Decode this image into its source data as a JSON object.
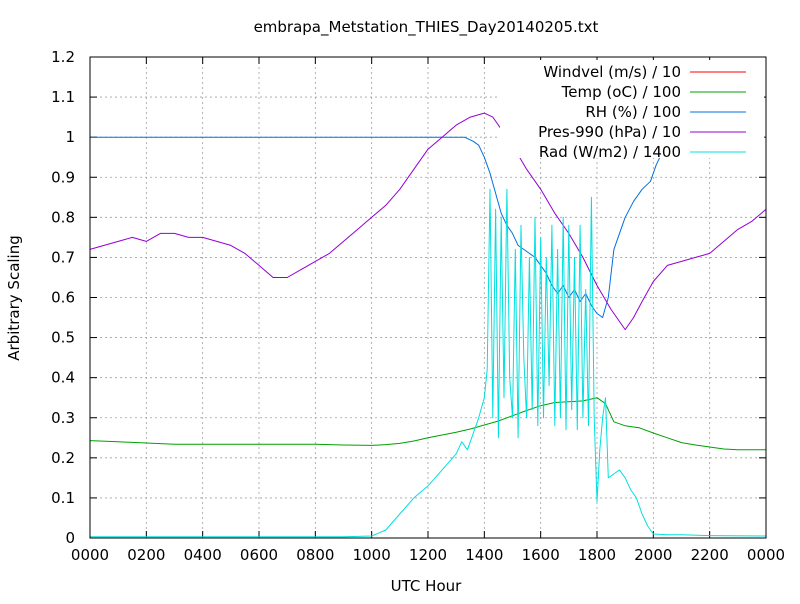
{
  "chart_data": {
    "type": "line",
    "title": "embrapa_Metstation_THIES_Day20140205.txt",
    "xlabel": "UTC Hour",
    "ylabel": "Arbitrary Scaling",
    "xlim": [
      0,
      24
    ],
    "ylim": [
      0,
      1.2
    ],
    "grid": true,
    "legend_position": "top-right",
    "x_ticks": [
      {
        "value": 0,
        "label": "0000"
      },
      {
        "value": 2,
        "label": "0200"
      },
      {
        "value": 4,
        "label": "0400"
      },
      {
        "value": 6,
        "label": "0600"
      },
      {
        "value": 8,
        "label": "0800"
      },
      {
        "value": 10,
        "label": "1000"
      },
      {
        "value": 12,
        "label": "1200"
      },
      {
        "value": 14,
        "label": "1400"
      },
      {
        "value": 16,
        "label": "1600"
      },
      {
        "value": 18,
        "label": "1800"
      },
      {
        "value": 20,
        "label": "2000"
      },
      {
        "value": 22,
        "label": "2200"
      },
      {
        "value": 24,
        "label": "0000"
      }
    ],
    "y_ticks": [
      {
        "value": 0,
        "label": "0"
      },
      {
        "value": 0.1,
        "label": "0.1"
      },
      {
        "value": 0.2,
        "label": "0.2"
      },
      {
        "value": 0.3,
        "label": "0.3"
      },
      {
        "value": 0.4,
        "label": "0.4"
      },
      {
        "value": 0.5,
        "label": "0.5"
      },
      {
        "value": 0.6,
        "label": "0.6"
      },
      {
        "value": 0.7,
        "label": "0.7"
      },
      {
        "value": 0.8,
        "label": "0.8"
      },
      {
        "value": 0.9,
        "label": "0.9"
      },
      {
        "value": 1.0,
        "label": "1"
      },
      {
        "value": 1.1,
        "label": "1.1"
      },
      {
        "value": 1.2,
        "label": "1.2"
      }
    ],
    "series": [
      {
        "name": "Windvel (m/s) / 10",
        "color": "#ff0000",
        "x": [
          0,
          24
        ],
        "y": [
          0,
          0
        ]
      },
      {
        "name": "Temp (oC) / 100",
        "color": "#00a000",
        "x": [
          0,
          1,
          2,
          3,
          4,
          5,
          6,
          7,
          8,
          9,
          10,
          10.5,
          11,
          11.5,
          12,
          12.5,
          13,
          13.5,
          14,
          14.5,
          15,
          15.5,
          16,
          16.5,
          17,
          17.5,
          18,
          18.3,
          18.6,
          19,
          19.5,
          20,
          20.5,
          21,
          21.5,
          22,
          22.5,
          23,
          24
        ],
        "y": [
          0.243,
          0.24,
          0.237,
          0.234,
          0.234,
          0.234,
          0.234,
          0.234,
          0.234,
          0.232,
          0.231,
          0.233,
          0.236,
          0.242,
          0.25,
          0.257,
          0.264,
          0.272,
          0.282,
          0.292,
          0.305,
          0.318,
          0.33,
          0.338,
          0.34,
          0.342,
          0.35,
          0.335,
          0.29,
          0.28,
          0.275,
          0.262,
          0.25,
          0.238,
          0.232,
          0.227,
          0.222,
          0.22,
          0.22
        ]
      },
      {
        "name": "RH (%) / 100",
        "color": "#0070e0",
        "x": [
          0,
          12.5,
          13.0,
          13.3,
          13.6,
          13.8,
          14.0,
          14.2,
          14.4,
          14.6,
          14.8,
          15.0,
          15.2,
          15.4,
          15.6,
          15.8,
          16.0,
          16.2,
          16.4,
          16.6,
          16.8,
          17.0,
          17.2,
          17.4,
          17.6,
          17.8,
          18.0,
          18.2,
          18.4,
          18.6,
          18.8,
          19.0,
          19.3,
          19.6,
          19.9,
          20.1,
          20.3,
          20.6,
          21,
          24
        ],
        "y": [
          1.0,
          1.0,
          1.0,
          1.0,
          0.99,
          0.98,
          0.95,
          0.91,
          0.86,
          0.81,
          0.78,
          0.76,
          0.73,
          0.72,
          0.71,
          0.7,
          0.68,
          0.66,
          0.63,
          0.61,
          0.63,
          0.6,
          0.62,
          0.59,
          0.61,
          0.58,
          0.56,
          0.55,
          0.6,
          0.72,
          0.76,
          0.8,
          0.84,
          0.87,
          0.89,
          0.93,
          0.96,
          0.99,
          1.0,
          1.0
        ]
      },
      {
        "name": "Pres-990 (hPa) / 10",
        "color": "#9400d3",
        "x": [
          0,
          0.5,
          1,
          1.5,
          2,
          2.5,
          3,
          3.5,
          4,
          4.5,
          5,
          5.5,
          6,
          6.5,
          7,
          7.5,
          8,
          8.5,
          9,
          9.5,
          10,
          10.5,
          11,
          11.5,
          12,
          12.5,
          13,
          13.5,
          14,
          14.3,
          14.6,
          15,
          15.5,
          16,
          16.5,
          17,
          17.5,
          18,
          18.5,
          19,
          19.3,
          19.6,
          20,
          20.5,
          21,
          21.5,
          22,
          22.5,
          23,
          23.5,
          24
        ],
        "y": [
          0.72,
          0.73,
          0.74,
          0.75,
          0.74,
          0.76,
          0.76,
          0.75,
          0.75,
          0.74,
          0.73,
          0.71,
          0.68,
          0.65,
          0.65,
          0.67,
          0.69,
          0.71,
          0.74,
          0.77,
          0.8,
          0.83,
          0.87,
          0.92,
          0.97,
          1.0,
          1.03,
          1.05,
          1.06,
          1.05,
          1.02,
          0.98,
          0.92,
          0.87,
          0.81,
          0.76,
          0.7,
          0.63,
          0.57,
          0.52,
          0.55,
          0.59,
          0.64,
          0.68,
          0.69,
          0.7,
          0.71,
          0.74,
          0.77,
          0.79,
          0.82
        ]
      },
      {
        "name": "Rad (W/m2) / 1400",
        "color": "#00e0e0",
        "x": [
          0,
          9,
          10,
          10.5,
          11,
          11.5,
          12,
          12.5,
          13,
          13.2,
          13.4,
          13.6,
          13.8,
          14.0,
          14.1,
          14.2,
          14.3,
          14.4,
          14.5,
          14.6,
          14.7,
          14.8,
          14.9,
          15.0,
          15.1,
          15.2,
          15.3,
          15.4,
          15.5,
          15.6,
          15.7,
          15.8,
          15.9,
          16.0,
          16.1,
          16.2,
          16.3,
          16.4,
          16.5,
          16.6,
          16.7,
          16.8,
          16.9,
          17.0,
          17.1,
          17.2,
          17.3,
          17.4,
          17.5,
          17.6,
          17.7,
          17.8,
          17.9,
          18.0,
          18.1,
          18.2,
          18.3,
          18.4,
          18.6,
          18.8,
          19.0,
          19.2,
          19.4,
          19.6,
          19.8,
          20.0,
          20.5,
          21,
          22,
          24
        ],
        "y": [
          0.003,
          0.003,
          0.005,
          0.02,
          0.06,
          0.1,
          0.13,
          0.17,
          0.21,
          0.24,
          0.22,
          0.26,
          0.3,
          0.35,
          0.42,
          0.87,
          0.3,
          0.82,
          0.25,
          0.8,
          0.35,
          0.87,
          0.4,
          0.3,
          0.72,
          0.25,
          0.78,
          0.45,
          0.3,
          0.7,
          0.32,
          0.8,
          0.28,
          0.75,
          0.3,
          0.7,
          0.38,
          0.78,
          0.28,
          0.72,
          0.3,
          0.8,
          0.27,
          0.78,
          0.32,
          0.7,
          0.27,
          0.78,
          0.3,
          0.62,
          0.28,
          0.85,
          0.3,
          0.09,
          0.22,
          0.3,
          0.35,
          0.15,
          0.16,
          0.17,
          0.15,
          0.12,
          0.1,
          0.06,
          0.03,
          0.01,
          0.008,
          0.008,
          0.006,
          0.005
        ]
      }
    ]
  }
}
